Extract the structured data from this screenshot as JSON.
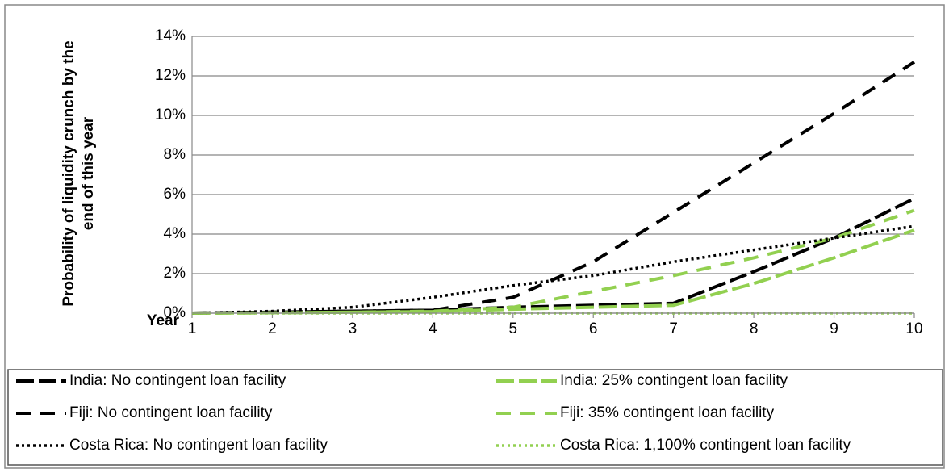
{
  "chart_data": {
    "type": "line",
    "x_label": "Year",
    "y_label": [
      "Probability of liquidity crunch by the",
      "end of this year"
    ],
    "x": [
      1,
      2,
      3,
      4,
      5,
      6,
      7,
      8,
      9,
      10
    ],
    "xlim": [
      1,
      10
    ],
    "xticks": [
      1,
      2,
      3,
      4,
      5,
      6,
      7,
      8,
      9,
      10
    ],
    "ylim": [
      0,
      14
    ],
    "yticks": [
      {
        "value": 0,
        "label": "0%"
      },
      {
        "value": 2,
        "label": "2%"
      },
      {
        "value": 4,
        "label": "4%"
      },
      {
        "value": 6,
        "label": "6%"
      },
      {
        "value": 8,
        "label": "8%"
      },
      {
        "value": 10,
        "label": "10%"
      },
      {
        "value": 12,
        "label": "12%"
      },
      {
        "value": 14,
        "label": "14%"
      }
    ],
    "grid": true,
    "legend": "bottom",
    "series": [
      {
        "name": "India: No contingent loan facility",
        "color": "#000000",
        "style": "longdash",
        "values": [
          0,
          0.05,
          0.1,
          0.15,
          0.3,
          0.4,
          0.5,
          2.1,
          3.8,
          5.8
        ]
      },
      {
        "name": "India: 25% contingent loan facility",
        "color": "#92d050",
        "style": "longdash",
        "values": [
          0,
          0.02,
          0.05,
          0.08,
          0.2,
          0.3,
          0.4,
          1.5,
          2.8,
          4.2
        ]
      },
      {
        "name": "Fiji: No contingent loan facility",
        "color": "#000000",
        "style": "dash",
        "values": [
          0,
          0.05,
          0.1,
          0.15,
          0.8,
          2.6,
          5.1,
          7.6,
          10.1,
          12.7
        ]
      },
      {
        "name": "Fiji: 35% contingent loan facility",
        "color": "#92d050",
        "style": "dash",
        "values": [
          0,
          0.02,
          0.05,
          0.1,
          0.3,
          1.1,
          1.9,
          2.8,
          3.8,
          5.2
        ]
      },
      {
        "name": "Costa Rica: No contingent loan facility",
        "color": "#000000",
        "style": "dot",
        "values": [
          0,
          0.1,
          0.3,
          0.8,
          1.4,
          1.9,
          2.6,
          3.2,
          3.8,
          4.4
        ]
      },
      {
        "name": "Costa Rica: 1,100% contingent loan facility",
        "color": "#92d050",
        "style": "dot",
        "values": [
          0,
          0,
          0,
          0,
          0,
          0,
          0,
          0,
          0,
          0
        ]
      }
    ]
  }
}
